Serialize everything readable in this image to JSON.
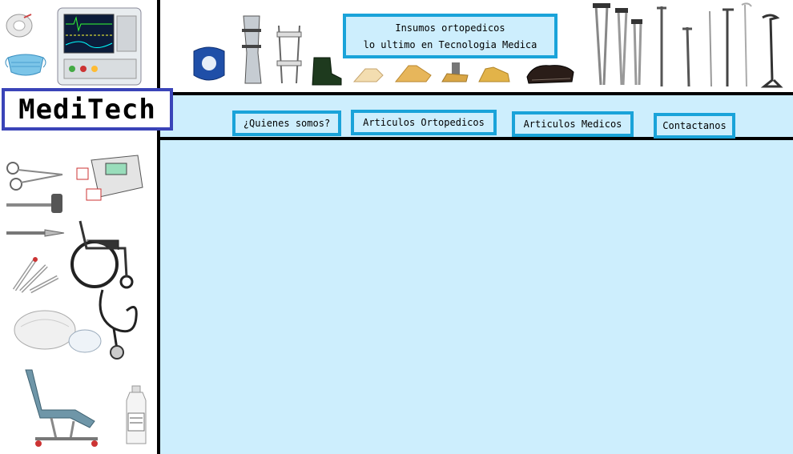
{
  "brand": {
    "logo_text": "MediTech"
  },
  "tagline": {
    "line1": "Insumos ortopedicos",
    "line2": "lo ultimo en Tecnologia Medica"
  },
  "nav": {
    "items": [
      {
        "label": "¿Quienes somos?"
      },
      {
        "label": "Articulos Ortopedicos"
      },
      {
        "label": "Articulos Medicos"
      },
      {
        "label": "Contactanos"
      }
    ]
  },
  "colors": {
    "accent_border": "#1aa3d9",
    "logo_border": "#3a44b8",
    "panel_bg": "#cdeefd",
    "divider": "#000000"
  },
  "images": {
    "header_left": [
      "tape-roll-icon",
      "surgical-mask-icon",
      "patient-monitor-icon"
    ],
    "header_strip": [
      "knee-brace-icon",
      "leg-brace-icon",
      "leg-splint-icon",
      "ortho-boot-icon",
      "foot-prosthesis-icon",
      "ortho-shoe-icon",
      "crutches-icon",
      "walking-canes-icon"
    ],
    "sidebar": [
      "scissors-icon",
      "defibrillator-icon",
      "reflex-hammer-icon",
      "scalpel-icon",
      "wheelchair-icon",
      "syringes-icon",
      "stethoscope-icon",
      "shoe-covers-icon",
      "exam-chair-icon",
      "sanitizer-bottle-icon"
    ]
  }
}
